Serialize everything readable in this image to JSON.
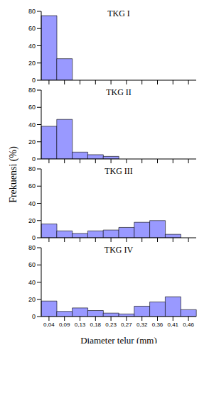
{
  "chart_data": [
    {
      "type": "bar",
      "title": "TKG I",
      "categories": [
        "0,04",
        "0,09",
        "0,13",
        "0,18",
        "0,23",
        "0,27",
        "0,32",
        "0,36",
        "0,41",
        "0,46"
      ],
      "values": [
        75,
        25,
        0,
        0,
        0,
        0,
        0,
        0,
        0,
        0
      ],
      "color": "#9999ff",
      "ylim": [
        0,
        80
      ],
      "yticks": [
        0,
        20,
        40,
        60,
        80
      ],
      "grid": false,
      "tick_labels": "y"
    },
    {
      "type": "bar",
      "title": "TKG II",
      "categories": [
        "0,04",
        "0,09",
        "0,13",
        "0,18",
        "0,23",
        "0,27",
        "0,32",
        "0,36",
        "0,41",
        "0,46"
      ],
      "values": [
        38,
        46,
        8,
        5,
        3,
        0,
        0,
        0,
        0,
        0
      ],
      "color": "#9999ff",
      "ylim": [
        0,
        80
      ],
      "yticks": [
        0,
        20,
        40,
        60,
        80
      ],
      "grid": false,
      "tick_labels": "y",
      "y_label": "Frekuensi (%)"
    },
    {
      "type": "bar",
      "title": "TKG III",
      "categories": [
        "0,04",
        "0,09",
        "0,13",
        "0,18",
        "0,23",
        "0,27",
        "0,32",
        "0,36",
        "0,41",
        "0,46"
      ],
      "values": [
        16,
        8,
        5,
        8,
        9,
        12,
        18,
        20,
        4,
        0
      ],
      "color": "#9999ff",
      "ylim": [
        0,
        80
      ],
      "yticks": [
        0,
        20,
        40,
        60,
        80
      ],
      "grid": false,
      "tick_labels": "y"
    },
    {
      "type": "bar",
      "title": "TKG IV",
      "categories": [
        "0,04",
        "0,09",
        "0,13",
        "0,18",
        "0,23",
        "0,27",
        "0,32",
        "0,36",
        "0,41",
        "0,46"
      ],
      "values": [
        18,
        6,
        10,
        7,
        4,
        3,
        12,
        17,
        23,
        8
      ],
      "color": "#9999ff",
      "ylim": [
        0,
        80
      ],
      "yticks": [
        0,
        20,
        40,
        60,
        80
      ],
      "grid": false,
      "x_label": "Diameter telur (mm)"
    }
  ]
}
